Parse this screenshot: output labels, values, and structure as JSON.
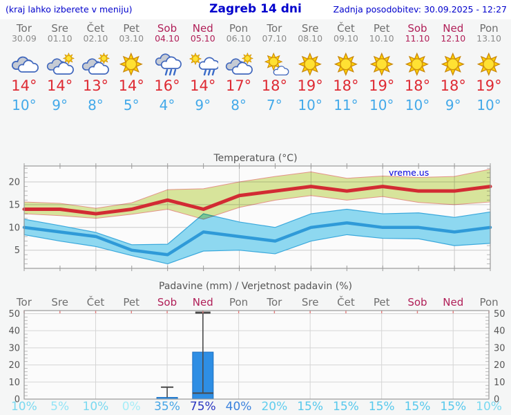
{
  "header": {
    "left_note": "(kraj lahko izberete v meniju)",
    "title": "Zagreb 14 dni",
    "updated": "Zadnja posodobitev: 30.09.2025 - 12:27"
  },
  "forecast": {
    "days": [
      {
        "weekday": "Tor",
        "date": "30.09",
        "is_weekend": false,
        "icon": "cloudy",
        "tmax": "14°",
        "tmin": "10°"
      },
      {
        "weekday": "Sre",
        "date": "01.10",
        "is_weekend": false,
        "icon": "partly-cloudy",
        "tmax": "14°",
        "tmin": "9°"
      },
      {
        "weekday": "Čet",
        "date": "02.10",
        "is_weekend": false,
        "icon": "partly-cloudy",
        "tmax": "13°",
        "tmin": "8°"
      },
      {
        "weekday": "Pet",
        "date": "03.10",
        "is_weekend": false,
        "icon": "sunny",
        "tmax": "14°",
        "tmin": "5°"
      },
      {
        "weekday": "Sob",
        "date": "04.10",
        "is_weekend": true,
        "icon": "rain",
        "tmax": "16°",
        "tmin": "4°"
      },
      {
        "weekday": "Ned",
        "date": "05.10",
        "is_weekend": true,
        "icon": "sun-shower",
        "tmax": "14°",
        "tmin": "9°"
      },
      {
        "weekday": "Pon",
        "date": "06.10",
        "is_weekend": false,
        "icon": "partly-cloudy",
        "tmax": "17°",
        "tmin": "8°"
      },
      {
        "weekday": "Tor",
        "date": "07.10",
        "is_weekend": false,
        "icon": "sun-cloud",
        "tmax": "18°",
        "tmin": "7°"
      },
      {
        "weekday": "Sre",
        "date": "08.10",
        "is_weekend": false,
        "icon": "sunny",
        "tmax": "19°",
        "tmin": "10°"
      },
      {
        "weekday": "Čet",
        "date": "09.10",
        "is_weekend": false,
        "icon": "sunny",
        "tmax": "18°",
        "tmin": "11°"
      },
      {
        "weekday": "Pet",
        "date": "10.10",
        "is_weekend": false,
        "icon": "sunny",
        "tmax": "19°",
        "tmin": "10°"
      },
      {
        "weekday": "Sob",
        "date": "11.10",
        "is_weekend": true,
        "icon": "sunny",
        "tmax": "18°",
        "tmin": "10°"
      },
      {
        "weekday": "Ned",
        "date": "12.10",
        "is_weekend": true,
        "icon": "sunny",
        "tmax": "18°",
        "tmin": "9°"
      },
      {
        "weekday": "Pon",
        "date": "13.10",
        "is_weekend": false,
        "icon": "sunny",
        "tmax": "19°",
        "tmin": "10°"
      }
    ],
    "weekend_color": "#b01e57",
    "tmax_color": "#de2a33",
    "tmin_color": "#43a9e9"
  },
  "chart_data": [
    {
      "type": "line",
      "title": "Temperatura (°C)",
      "watermark": "vreme.us",
      "categories": [
        "Tor",
        "Sre",
        "Čet",
        "Pet",
        "Sob",
        "Ned",
        "Pon",
        "Tor",
        "Sre",
        "Čet",
        "Pet",
        "Sob",
        "Ned",
        "Pon"
      ],
      "ylim": [
        1,
        23.5
      ],
      "yticks": [
        5,
        10,
        15,
        20
      ],
      "grid": true,
      "series": [
        {
          "name": "max temperature",
          "color": "#d22b33",
          "band_color": "#dbe89e",
          "band_edge": "#e8958a",
          "values": [
            14,
            14,
            13,
            14,
            16,
            14,
            17,
            18,
            19,
            18,
            19,
            18,
            18,
            19
          ],
          "band_upper": [
            15.6,
            15.3,
            14.2,
            15.4,
            18.3,
            18.5,
            20.0,
            21.2,
            22.2,
            20.8,
            21.3,
            21.0,
            21.2,
            22.8
          ],
          "band_lower": [
            13.0,
            12.6,
            12.0,
            12.9,
            14.0,
            11.8,
            14.4,
            16.0,
            17.0,
            16.0,
            16.8,
            15.5,
            15.0,
            15.6
          ]
        },
        {
          "name": "min temperature",
          "color": "#2f9ad8",
          "band_color": "#8ed8f0",
          "band_edge": "#39a8dc",
          "values": [
            10,
            9,
            8,
            5,
            4,
            9,
            8,
            7,
            10,
            11,
            10,
            10,
            9,
            10
          ],
          "band_upper": [
            11.8,
            10.4,
            8.9,
            6.2,
            6.3,
            13.0,
            11.2,
            10.0,
            13.0,
            14.0,
            13.0,
            13.2,
            12.2,
            13.4
          ],
          "band_lower": [
            8.4,
            7.0,
            5.8,
            3.8,
            2.0,
            4.8,
            5.0,
            4.2,
            7.0,
            8.4,
            7.6,
            7.5,
            6.0,
            6.5
          ]
        }
      ]
    },
    {
      "type": "bar",
      "title": "Padavine (mm) / Verjetnost padavin (%)",
      "categories": [
        "Tor",
        "Sre",
        "Čet",
        "Pet",
        "Sob",
        "Ned",
        "Pon",
        "Tor",
        "Sre",
        "Čet",
        "Pet",
        "Sob",
        "Ned",
        "Pon"
      ],
      "ylim": [
        0,
        51.8
      ],
      "yticks": [
        0,
        10,
        20,
        30,
        40,
        50
      ],
      "values": [
        0,
        0,
        0,
        0,
        1,
        27.5,
        0,
        0,
        0,
        0,
        0,
        0,
        0,
        0
      ],
      "whisker_low": [
        null,
        null,
        null,
        null,
        null,
        3.5,
        null,
        null,
        null,
        null,
        null,
        null,
        null,
        null
      ],
      "whisker_high": [
        null,
        null,
        null,
        null,
        7,
        50.6,
        null,
        null,
        null,
        null,
        null,
        null,
        null,
        null
      ],
      "probabilities": [
        "10%",
        "5%",
        "10%",
        "0%",
        "35%",
        "75%",
        "40%",
        "20%",
        "15%",
        "15%",
        "15%",
        "15%",
        "15%",
        "10%"
      ],
      "prob_colors": [
        "#7ad9f0",
        "#92e4f6",
        "#7ad9f0",
        "#a6edf8",
        "#45a5e6",
        "#2a35c0",
        "#3b82dd",
        "#5fcdee",
        "#56c8ec",
        "#56c8ec",
        "#56c8ec",
        "#56c8ec",
        "#56c8ec",
        "#7ad9f0"
      ],
      "bar_color": "#2e8ee4",
      "bar_edge": "#1d6fc0",
      "whisker_color": "#4a4a4a",
      "day_tick_color": "#e27a7a"
    }
  ]
}
